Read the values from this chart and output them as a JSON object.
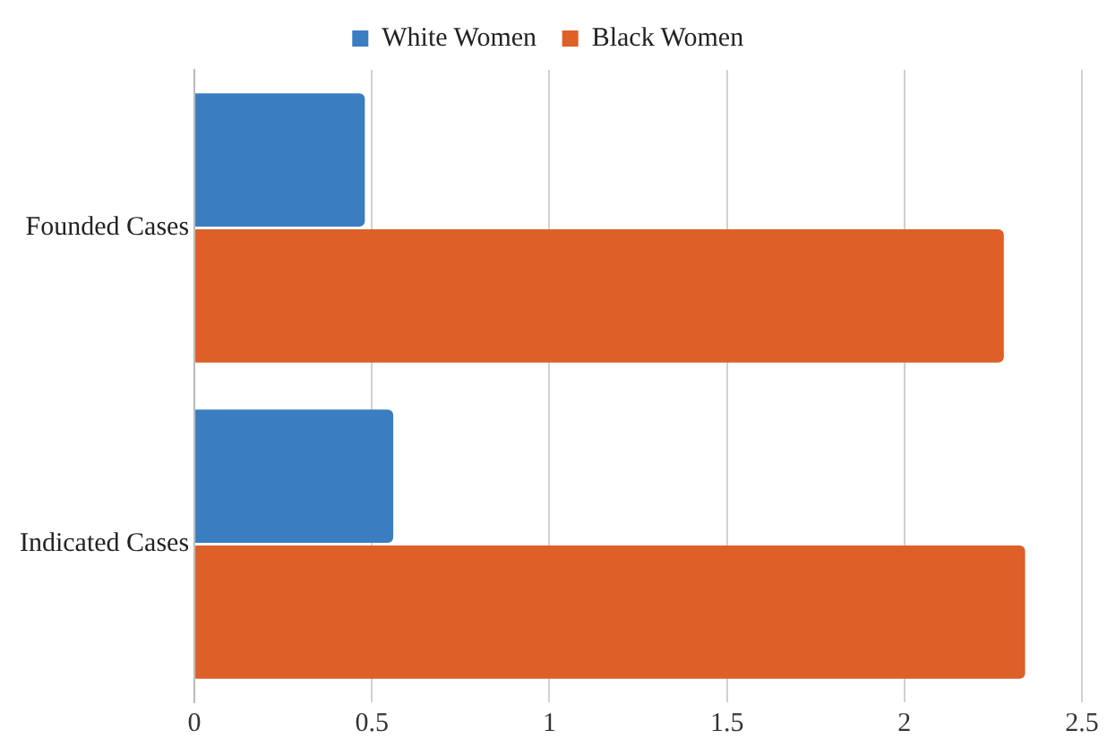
{
  "chart_data": {
    "type": "bar",
    "orientation": "horizontal",
    "categories": [
      "Founded Cases",
      "Indicated Cases"
    ],
    "series": [
      {
        "name": "White Women",
        "color": "#3a7dc0",
        "values": [
          0.48,
          0.56
        ]
      },
      {
        "name": "Black Women",
        "color": "#dc6028",
        "values": [
          2.28,
          2.34
        ]
      }
    ],
    "xlim": [
      0,
      2.5
    ],
    "xticks": [
      0,
      0.5,
      1,
      1.5,
      2,
      2.5
    ],
    "grid": "x",
    "legend": "top"
  }
}
